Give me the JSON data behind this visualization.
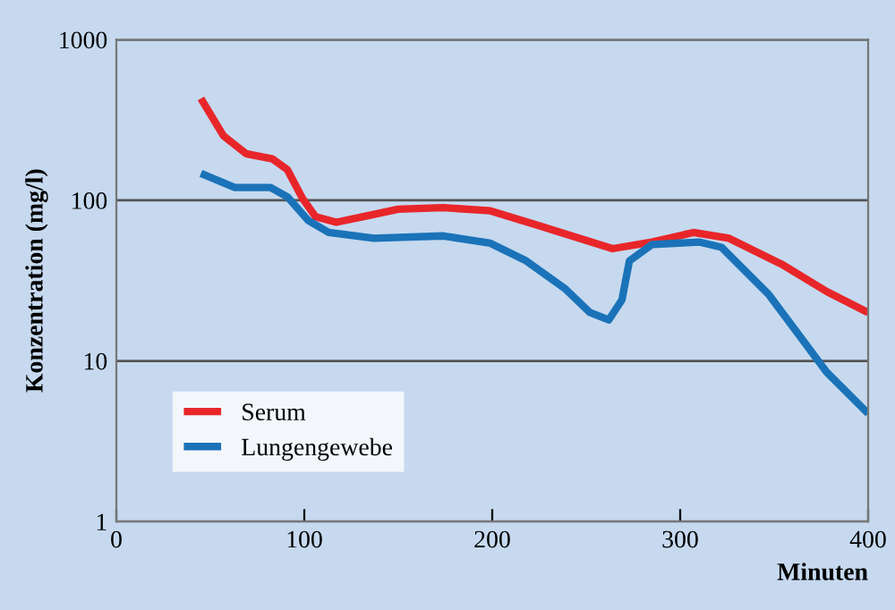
{
  "chart_data": {
    "type": "line",
    "xlabel": "Minuten",
    "ylabel": "Konzentration (mg/l)",
    "log": "y",
    "xlim": [
      0,
      400
    ],
    "xticks": [
      0,
      100,
      200,
      300,
      400
    ],
    "ylim": [
      1,
      1000
    ],
    "yticks": [
      1,
      10,
      100,
      1000
    ],
    "grid": "y",
    "legend": "bottom left",
    "line_style": "solid",
    "series": [
      {
        "name": "Serum",
        "color": "#e8262a",
        "x": [
          45,
          57,
          69,
          83,
          91,
          99,
          106,
          117,
          131,
          150,
          174,
          199,
          224,
          264,
          285,
          307,
          326,
          354,
          378,
          400
        ],
        "values": [
          430,
          252,
          195,
          181,
          155,
          103,
          79,
          73,
          79,
          88,
          90,
          86,
          70,
          50,
          55,
          63,
          58,
          40,
          27,
          20
        ]
      },
      {
        "name": "Lungengewebe",
        "color": "#1a73b8",
        "x": [
          45,
          63,
          82,
          91,
          102,
          113,
          137,
          174,
          199,
          218,
          239,
          252,
          262,
          269,
          273,
          285,
          310,
          322,
          347,
          378,
          400
        ],
        "values": [
          147,
          120,
          120,
          105,
          75,
          63,
          58,
          60,
          54,
          42,
          28,
          20,
          18,
          24,
          42,
          53,
          55,
          51,
          26,
          8.5,
          4.7
        ]
      }
    ]
  }
}
